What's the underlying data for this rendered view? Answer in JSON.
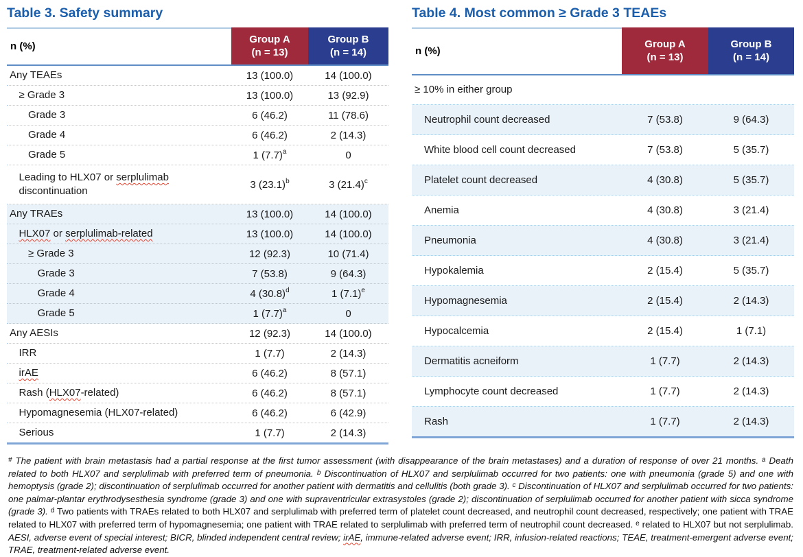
{
  "colors": {
    "title_blue": "#1B5EAC",
    "group_a_bg": "#9E2A3C",
    "group_b_bg": "#2B3D8F",
    "row_tint": "#EAF2F9",
    "rule_light": "#AFCBE3",
    "rule_steel": "#5E8CC4",
    "rule_bottom": "#7FA5D6",
    "spellcheck_red": "#E8412C"
  },
  "table3": {
    "title": "Table 3. Safety summary",
    "header": {
      "label": "n (%)",
      "group_a": {
        "name": "Group A",
        "n": "(n = 13)"
      },
      "group_b": {
        "name": "Group B",
        "n": "(n = 14)"
      }
    },
    "rows": [
      {
        "indent": 0,
        "parts": [
          {
            "text": "Any TEAEs"
          }
        ],
        "a": {
          "text": "13 (100.0)"
        },
        "b": {
          "text": "14 (100.0)"
        }
      },
      {
        "indent": 1,
        "parts": [
          {
            "text": "≥ Grade 3"
          }
        ],
        "a": {
          "text": "13 (100.0)"
        },
        "b": {
          "text": "13 (92.9)"
        }
      },
      {
        "indent": 2,
        "parts": [
          {
            "text": "Grade 3"
          }
        ],
        "a": {
          "text": "6 (46.2)"
        },
        "b": {
          "text": "11 (78.6)"
        }
      },
      {
        "indent": 2,
        "parts": [
          {
            "text": "Grade 4"
          }
        ],
        "a": {
          "text": "6 (46.2)"
        },
        "b": {
          "text": "2 (14.3)"
        }
      },
      {
        "indent": 2,
        "parts": [
          {
            "text": "Grade 5"
          }
        ],
        "a": {
          "text": "1 (7.7)",
          "sup": "a"
        },
        "b": {
          "text": "0"
        }
      },
      {
        "indent": 1,
        "tall": true,
        "parts": [
          {
            "text": "Leading to HLX07 or "
          },
          {
            "text": "serplulimab",
            "wavy": true
          },
          {
            "text": " discontinuation"
          }
        ],
        "a": {
          "text": "3 (23.1)",
          "sup": "b"
        },
        "b": {
          "text": "3 (21.4)",
          "sup": "c"
        }
      },
      {
        "indent": 0,
        "tint": true,
        "parts": [
          {
            "text": "Any TRAEs"
          }
        ],
        "a": {
          "text": "13 (100.0)"
        },
        "b": {
          "text": "14 (100.0)"
        }
      },
      {
        "indent": 1,
        "tint": true,
        "parts": [
          {
            "text": "HLX07",
            "wavy": true
          },
          {
            "text": " or "
          },
          {
            "text": "serplulimab-related",
            "wavy": true
          }
        ],
        "a": {
          "text": "13 (100.0)"
        },
        "b": {
          "text": "14 (100.0)"
        }
      },
      {
        "indent": 2,
        "tint": true,
        "parts": [
          {
            "text": "≥ Grade 3"
          }
        ],
        "a": {
          "text": "12 (92.3)"
        },
        "b": {
          "text": "10 (71.4)"
        }
      },
      {
        "indent": 3,
        "tint": true,
        "parts": [
          {
            "text": "Grade 3"
          }
        ],
        "a": {
          "text": "7 (53.8)"
        },
        "b": {
          "text": "9 (64.3)"
        }
      },
      {
        "indent": 3,
        "tint": true,
        "parts": [
          {
            "text": "Grade 4"
          }
        ],
        "a": {
          "text": "4 (30.8)",
          "sup": "d"
        },
        "b": {
          "text": "1 (7.1)",
          "sup": "e"
        }
      },
      {
        "indent": 3,
        "tint": true,
        "parts": [
          {
            "text": "Grade 5"
          }
        ],
        "a": {
          "text": "1 (7.7)",
          "sup": "a"
        },
        "b": {
          "text": "0"
        }
      },
      {
        "indent": 0,
        "parts": [
          {
            "text": "Any AESIs"
          }
        ],
        "a": {
          "text": "12 (92.3)"
        },
        "b": {
          "text": "14 (100.0)"
        }
      },
      {
        "indent": 1,
        "parts": [
          {
            "text": "IRR"
          }
        ],
        "a": {
          "text": "1 (7.7)"
        },
        "b": {
          "text": "2 (14.3)"
        }
      },
      {
        "indent": 1,
        "parts": [
          {
            "text": "irAE",
            "wavy": true
          }
        ],
        "a": {
          "text": "6 (46.2)"
        },
        "b": {
          "text": "8 (57.1)"
        }
      },
      {
        "indent": 1,
        "parts": [
          {
            "text": "Rash ("
          },
          {
            "text": "HLX07",
            "wavy": true
          },
          {
            "text": "-related)"
          }
        ],
        "a": {
          "text": "6 (46.2)"
        },
        "b": {
          "text": "8 (57.1)"
        }
      },
      {
        "indent": 1,
        "parts": [
          {
            "text": "Hypomagnesemia (HLX07-related)"
          }
        ],
        "a": {
          "text": "6 (46.2)"
        },
        "b": {
          "text": "6 (42.9)"
        }
      },
      {
        "indent": 1,
        "parts": [
          {
            "text": "Serious"
          }
        ],
        "a": {
          "text": "1 (7.7)"
        },
        "b": {
          "text": "2 (14.3)"
        }
      }
    ]
  },
  "table4": {
    "title": "Table 4. Most common ≥ Grade 3 TEAEs",
    "header": {
      "label": "n (%)",
      "group_a": {
        "name": "Group A",
        "n": "(n = 13)"
      },
      "group_b": {
        "name": "Group B",
        "n": "(n = 14)"
      }
    },
    "subheader": "≥ 10% in either group",
    "rows": [
      {
        "tint": true,
        "parts": [
          {
            "text": "Neutrophil count decreased"
          }
        ],
        "a": {
          "text": "7 (53.8)"
        },
        "b": {
          "text": "9 (64.3)"
        }
      },
      {
        "tint": false,
        "parts": [
          {
            "text": "White blood cell count decreased"
          }
        ],
        "a": {
          "text": "7 (53.8)"
        },
        "b": {
          "text": "5 (35.7)"
        }
      },
      {
        "tint": true,
        "parts": [
          {
            "text": "Platelet count decreased"
          }
        ],
        "a": {
          "text": "4 (30.8)"
        },
        "b": {
          "text": "5 (35.7)"
        }
      },
      {
        "tint": false,
        "parts": [
          {
            "text": "Anemia"
          }
        ],
        "a": {
          "text": "4 (30.8)"
        },
        "b": {
          "text": "3 (21.4)"
        }
      },
      {
        "tint": true,
        "parts": [
          {
            "text": "Pneumonia"
          }
        ],
        "a": {
          "text": "4 (30.8)"
        },
        "b": {
          "text": "3 (21.4)"
        }
      },
      {
        "tint": false,
        "parts": [
          {
            "text": "Hypokalemia"
          }
        ],
        "a": {
          "text": "2 (15.4)"
        },
        "b": {
          "text": "5 (35.7)"
        }
      },
      {
        "tint": true,
        "parts": [
          {
            "text": "Hypomagnesemia"
          }
        ],
        "a": {
          "text": "2 (15.4)"
        },
        "b": {
          "text": "2 (14.3)"
        }
      },
      {
        "tint": false,
        "parts": [
          {
            "text": "Hypocalcemia"
          }
        ],
        "a": {
          "text": "2 (15.4)"
        },
        "b": {
          "text": "1 (7.1)"
        }
      },
      {
        "tint": true,
        "parts": [
          {
            "text": "Dermatitis acneiform"
          }
        ],
        "a": {
          "text": "1 (7.7)"
        },
        "b": {
          "text": "2 (14.3)"
        }
      },
      {
        "tint": false,
        "parts": [
          {
            "text": "Lymphocyte count decreased"
          }
        ],
        "a": {
          "text": "1 (7.7)"
        },
        "b": {
          "text": "2 (14.3)"
        }
      },
      {
        "tint": true,
        "parts": [
          {
            "text": "Rash"
          }
        ],
        "a": {
          "text": "1 (7.7)"
        },
        "b": {
          "text": "2 (14.3)"
        }
      }
    ]
  },
  "footnote": {
    "segments": [
      {
        "sup": "#",
        "italic": true
      },
      {
        "text": " The patient with brain metastasis had a partial response at the first tumor assessment (with disappearance of the brain metastases) and a duration of response of over 21 months. ",
        "italic": true
      },
      {
        "sup": "a",
        "italic": true
      },
      {
        "text": " Death related to both HLX07 and serplulimab with preferred term of pneumonia. ",
        "italic": true
      },
      {
        "sup": "b",
        "italic": true
      },
      {
        "text": " Discontinuation of HLX07 and serplulimab occurred for two patients: one with pneumonia (grade 5) and one with hemoptysis (grade 2); discontinuation of serplulimab occurred for another patient with dermatitis and cellulitis (both grade 3). ",
        "italic": true
      },
      {
        "sup": "c",
        "italic": true
      },
      {
        "text": " Discontinuation of HLX07 and serplulimab occurred for two patients: one palmar-plantar erythrodysesthesia syndrome (grade 3) and one with supraventricular extrasystoles (grade 2); discontinuation of serplulimab occurred for another patient with sicca syndrome (grade 3). ",
        "italic": true
      },
      {
        "sup": "d",
        "italic": false
      },
      {
        "text": " Two patients with TRAEs related to both HLX07 and serplulimab with preferred term of platelet count decreased, and neutrophil count decreased, respectively; one patient with TRAE related to HLX07 with preferred term of hypomagnesemia; one patient with TRAE related to serplulimab with preferred term of neutrophil count decreased. ",
        "italic": false
      },
      {
        "sup": "e",
        "italic": false
      },
      {
        "text": " related to HLX07 but not serplulimab. ",
        "italic": false
      },
      {
        "text": "AESI, adverse event of special interest; BICR, blinded independent central review; ",
        "italic": true
      },
      {
        "text": "irAE",
        "italic": true,
        "wavy": true
      },
      {
        "text": ", immune-related adverse event; IRR, infusion-related reactions; TEAE, treatment-emergent adverse event; TRAE, treatment-related adverse event.",
        "italic": true
      }
    ]
  }
}
